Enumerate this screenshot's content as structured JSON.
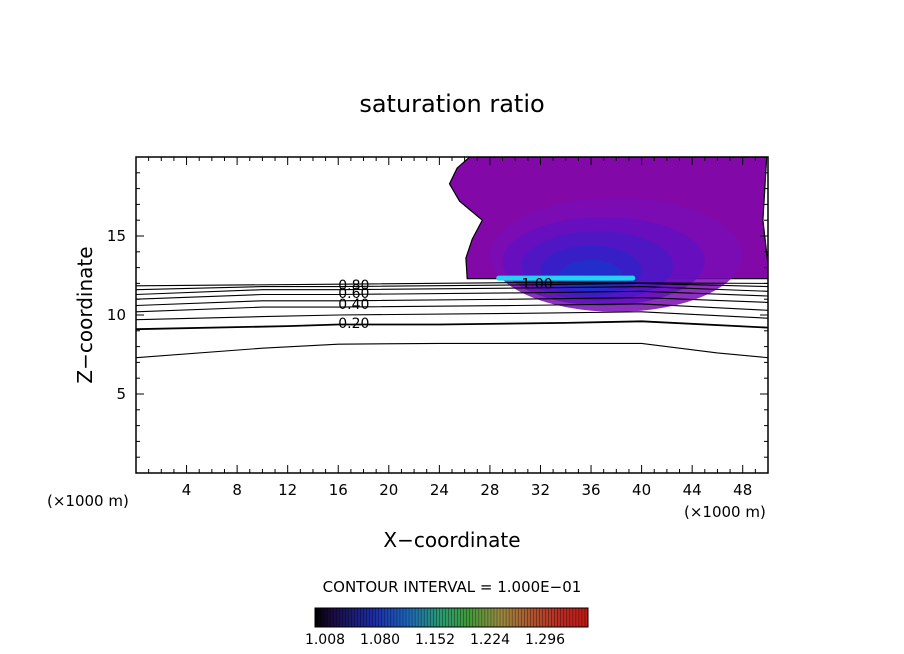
{
  "chart_data": {
    "type": "contour",
    "title": "saturation ratio",
    "xlabel": "X−coordinate",
    "ylabel": "Z−coordinate",
    "x_unit": "(×1000 m)",
    "y_unit": "(×1000 m)",
    "xlim": [
      0,
      50
    ],
    "ylim": [
      0,
      20
    ],
    "x_ticks": [
      4,
      8,
      12,
      16,
      20,
      24,
      28,
      32,
      36,
      40,
      44,
      48
    ],
    "x_tick_labels": [
      "4",
      "8",
      "12",
      "16",
      "20",
      "24",
      "28",
      "32",
      "36",
      "40",
      "44",
      "48"
    ],
    "y_ticks": [
      5,
      10,
      15
    ],
    "y_tick_labels": [
      "5",
      "10",
      "15"
    ],
    "contour_interval_text": "CONTOUR INTERVAL = 1.000E−01",
    "contour_labels": [
      {
        "text": "0.20",
        "x": 16,
        "y": 9.5
      },
      {
        "text": "0.40",
        "x": 16,
        "y": 10.7
      },
      {
        "text": "0.60",
        "x": 16,
        "y": 11.4
      },
      {
        "text": "0.80",
        "x": 16,
        "y": 11.9
      },
      {
        "text": "1.00",
        "x": 30.5,
        "y": 12.0
      }
    ],
    "contour_lines": [
      [
        [
          0,
          7.3
        ],
        [
          10,
          7.9
        ],
        [
          16,
          8.15
        ],
        [
          24,
          8.2
        ],
        [
          40,
          8.2
        ],
        [
          46,
          7.6
        ],
        [
          50,
          7.3
        ]
      ],
      [
        [
          0,
          9.1
        ],
        [
          12,
          9.3
        ],
        [
          16,
          9.4
        ],
        [
          24,
          9.4
        ],
        [
          34,
          9.5
        ],
        [
          40,
          9.6
        ],
        [
          50,
          9.2
        ]
      ],
      [
        [
          0,
          9.7
        ],
        [
          10,
          9.9
        ],
        [
          16,
          10.0
        ],
        [
          30,
          10.1
        ],
        [
          40,
          10.2
        ],
        [
          50,
          9.8
        ]
      ],
      [
        [
          0,
          10.2
        ],
        [
          10,
          10.5
        ],
        [
          16,
          10.5
        ],
        [
          30,
          10.6
        ],
        [
          40,
          10.7
        ],
        [
          50,
          10.3
        ]
      ],
      [
        [
          0,
          10.6
        ],
        [
          10,
          10.9
        ],
        [
          16,
          10.9
        ],
        [
          30,
          11.0
        ],
        [
          40,
          11.1
        ],
        [
          50,
          10.8
        ]
      ],
      [
        [
          0,
          11.0
        ],
        [
          10,
          11.3
        ],
        [
          16,
          11.3
        ],
        [
          30,
          11.4
        ],
        [
          40,
          11.5
        ],
        [
          50,
          11.2
        ]
      ],
      [
        [
          0,
          11.3
        ],
        [
          10,
          11.6
        ],
        [
          16,
          11.6
        ],
        [
          30,
          11.7
        ],
        [
          40,
          11.8
        ],
        [
          50,
          11.5
        ]
      ],
      [
        [
          0,
          11.6
        ],
        [
          10,
          11.8
        ],
        [
          16,
          11.8
        ],
        [
          30,
          11.9
        ],
        [
          40,
          12.0
        ],
        [
          50,
          11.8
        ]
      ],
      [
        [
          0,
          11.85
        ],
        [
          16,
          11.95
        ],
        [
          30,
          12.05
        ],
        [
          50,
          12.0
        ]
      ]
    ],
    "filled_region": {
      "color": "#8208a8",
      "boundary": [
        [
          26.2,
          12.3
        ],
        [
          26.1,
          13.6
        ],
        [
          26.6,
          14.8
        ],
        [
          27.4,
          16.0
        ],
        [
          25.6,
          17.2
        ],
        [
          24.8,
          18.3
        ],
        [
          25.4,
          19.3
        ],
        [
          26.4,
          20
        ],
        [
          49.9,
          20
        ],
        [
          49.6,
          16.0
        ],
        [
          50,
          13.2
        ],
        [
          50,
          12.3
        ]
      ]
    },
    "core_bands": [
      {
        "cx": 38,
        "cy": 13.8,
        "rx": 10,
        "ry": 3.6,
        "color": "#7a0cb4"
      },
      {
        "cx": 37,
        "cy": 13.4,
        "rx": 8,
        "ry": 2.8,
        "color": "#6410c0"
      },
      {
        "cx": 36.5,
        "cy": 13.1,
        "rx": 6,
        "ry": 2.2,
        "color": "#4c18c6"
      },
      {
        "cx": 36,
        "cy": 12.8,
        "rx": 4,
        "ry": 1.6,
        "color": "#3420c8"
      },
      {
        "cx": 36,
        "cy": 12.5,
        "rx": 2.5,
        "ry": 1.0,
        "color": "#2030cc"
      }
    ],
    "highlight_band": {
      "x0": 28.5,
      "x1": 39.5,
      "y": 12.3,
      "color": "#22d4f0"
    },
    "colorbar": {
      "tick_labels": [
        "1.008",
        "1.080",
        "1.152",
        "1.224",
        "1.296"
      ],
      "stops": [
        {
          "pos": 0.0,
          "color": "#000000"
        },
        {
          "pos": 0.06,
          "color": "#1a0b3d"
        },
        {
          "pos": 0.22,
          "color": "#1b2ea8"
        },
        {
          "pos": 0.34,
          "color": "#1c66b8"
        },
        {
          "pos": 0.46,
          "color": "#2a9a72"
        },
        {
          "pos": 0.56,
          "color": "#3f9a3a"
        },
        {
          "pos": 0.68,
          "color": "#9a8a40"
        },
        {
          "pos": 0.8,
          "color": "#b0522d"
        },
        {
          "pos": 0.9,
          "color": "#b82a24"
        },
        {
          "pos": 1.0,
          "color": "#c01a10"
        }
      ]
    }
  }
}
